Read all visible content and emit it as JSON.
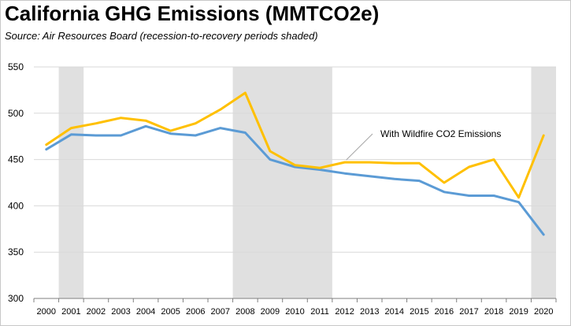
{
  "title": "California GHG Emissions (MMTCO2e)",
  "subtitle": "Source:  Air Resources Board (recession-to-recovery periods shaded)",
  "colors": {
    "with_wildfire": "#FFC000",
    "base": "#5B9BD5",
    "shade": "#E0E0E0",
    "grid": "#D9D9D9",
    "annotation_line": "#A6A6A6"
  },
  "chart_data": {
    "type": "line",
    "title": "California GHG Emissions (MMTCO2e)",
    "x": [
      2000,
      2001,
      2002,
      2003,
      2004,
      2005,
      2006,
      2007,
      2008,
      2009,
      2010,
      2011,
      2012,
      2013,
      2014,
      2015,
      2016,
      2017,
      2018,
      2019,
      2020
    ],
    "x_tick_labels": [
      "2000",
      "2001",
      "2002",
      "2003",
      "2004",
      "2005",
      "2006",
      "2007",
      "2008",
      "2009",
      "2010",
      "2011",
      "2012",
      "2013",
      "2014",
      "2015",
      "2016",
      "2017",
      "2018",
      "2019",
      "2020"
    ],
    "series": [
      {
        "color": "#5B9BD5",
        "values": [
          461,
          477,
          476,
          476,
          486,
          478,
          476,
          484,
          479,
          450,
          442,
          439,
          435,
          432,
          429,
          427,
          415,
          411,
          411,
          404,
          369
        ]
      },
      {
        "name": "With Wildfire CO2 Emissions",
        "color": "#FFC000",
        "values": [
          466,
          484,
          489,
          495,
          492,
          481,
          489,
          504,
          522,
          459,
          444,
          441,
          447,
          447,
          446,
          446,
          425,
          442,
          450,
          409,
          476
        ]
      }
    ],
    "shaded_periods": [
      [
        2000.5,
        2001.5
      ],
      [
        2007.5,
        2011.5
      ],
      [
        2019.5,
        2020.5
      ]
    ],
    "ylim": [
      300,
      550
    ],
    "y_ticks": [
      300,
      350,
      400,
      450,
      500,
      550
    ],
    "y_tick_labels": [
      "300",
      "350",
      "400",
      "450",
      "500",
      "550"
    ],
    "grid": true,
    "annotation": {
      "text": "With Wildfire CO2 Emissions",
      "points_to_year": 2012
    }
  }
}
